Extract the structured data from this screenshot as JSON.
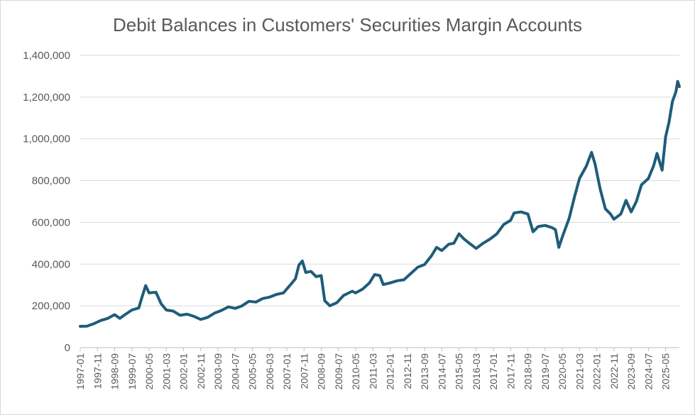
{
  "chart_data": {
    "type": "line",
    "title": "Debit Balances in Customers' Securities Margin Accounts",
    "xlabel": "",
    "ylabel": "",
    "ylim": [
      0,
      1400000
    ],
    "yticks": [
      "0",
      "200,000",
      "400,000",
      "600,000",
      "800,000",
      "1,000,000",
      "1,200,000",
      "1,400,000"
    ],
    "ytick_values": [
      0,
      200000,
      400000,
      600000,
      800000,
      1000000,
      1200000,
      1400000
    ],
    "xtick_labels": [
      "1997-01",
      "1997-11",
      "1998-09",
      "1999-07",
      "2000-05",
      "2001-03",
      "2002-01",
      "2002-11",
      "2003-09",
      "2004-07",
      "2005-05",
      "2006-03",
      "2007-01",
      "2007-11",
      "2008-09",
      "2009-07",
      "2010-05",
      "2011-03",
      "2012-01",
      "2012-11",
      "2013-09",
      "2014-07",
      "2015-05",
      "2016-03",
      "2017-01",
      "2017-11",
      "2018-09",
      "2019-07",
      "2020-05",
      "2021-03",
      "2022-01",
      "2022-11",
      "2023-09",
      "2024-07",
      "2025-05"
    ],
    "grid": "horizontal",
    "line_color": "#1f5c7a",
    "series": [
      {
        "name": "Debit Balances",
        "points": [
          [
            "1997-01",
            102000
          ],
          [
            "1997-05",
            103000
          ],
          [
            "1997-09",
            115000
          ],
          [
            "1998-01",
            130000
          ],
          [
            "1998-05",
            140000
          ],
          [
            "1998-09",
            158000
          ],
          [
            "1998-12",
            140000
          ],
          [
            "1999-03",
            158000
          ],
          [
            "1999-07",
            180000
          ],
          [
            "1999-11",
            190000
          ],
          [
            "2000-01",
            245000
          ],
          [
            "2000-03",
            297000
          ],
          [
            "2000-05",
            262000
          ],
          [
            "2000-09",
            265000
          ],
          [
            "2000-12",
            210000
          ],
          [
            "2001-03",
            180000
          ],
          [
            "2001-07",
            175000
          ],
          [
            "2001-11",
            155000
          ],
          [
            "2002-03",
            160000
          ],
          [
            "2002-07",
            150000
          ],
          [
            "2002-11",
            135000
          ],
          [
            "2003-03",
            145000
          ],
          [
            "2003-07",
            165000
          ],
          [
            "2003-11",
            178000
          ],
          [
            "2004-03",
            195000
          ],
          [
            "2004-07",
            188000
          ],
          [
            "2004-11",
            200000
          ],
          [
            "2005-03",
            222000
          ],
          [
            "2005-07",
            218000
          ],
          [
            "2005-11",
            235000
          ],
          [
            "2006-03",
            242000
          ],
          [
            "2006-07",
            255000
          ],
          [
            "2006-11",
            262000
          ],
          [
            "2007-03",
            300000
          ],
          [
            "2007-06",
            330000
          ],
          [
            "2007-08",
            395000
          ],
          [
            "2007-10",
            415000
          ],
          [
            "2007-12",
            360000
          ],
          [
            "2008-03",
            365000
          ],
          [
            "2008-06",
            340000
          ],
          [
            "2008-09",
            345000
          ],
          [
            "2008-11",
            225000
          ],
          [
            "2009-02",
            200000
          ],
          [
            "2009-06",
            215000
          ],
          [
            "2009-10",
            250000
          ],
          [
            "2010-03",
            270000
          ],
          [
            "2010-05",
            262000
          ],
          [
            "2010-09",
            280000
          ],
          [
            "2011-01",
            310000
          ],
          [
            "2011-04",
            350000
          ],
          [
            "2011-07",
            345000
          ],
          [
            "2011-09",
            302000
          ],
          [
            "2012-01",
            310000
          ],
          [
            "2012-05",
            320000
          ],
          [
            "2012-09",
            325000
          ],
          [
            "2013-01",
            355000
          ],
          [
            "2013-05",
            385000
          ],
          [
            "2013-09",
            398000
          ],
          [
            "2014-01",
            440000
          ],
          [
            "2014-04",
            480000
          ],
          [
            "2014-07",
            465000
          ],
          [
            "2014-11",
            495000
          ],
          [
            "2015-02",
            500000
          ],
          [
            "2015-05",
            545000
          ],
          [
            "2015-08",
            520000
          ],
          [
            "2015-11",
            500000
          ],
          [
            "2016-03",
            475000
          ],
          [
            "2016-07",
            500000
          ],
          [
            "2016-11",
            520000
          ],
          [
            "2017-03",
            545000
          ],
          [
            "2017-07",
            590000
          ],
          [
            "2017-11",
            610000
          ],
          [
            "2018-01",
            645000
          ],
          [
            "2018-05",
            650000
          ],
          [
            "2018-09",
            640000
          ],
          [
            "2018-12",
            555000
          ],
          [
            "2019-03",
            580000
          ],
          [
            "2019-07",
            585000
          ],
          [
            "2019-11",
            575000
          ],
          [
            "2020-01",
            565000
          ],
          [
            "2020-03",
            480000
          ],
          [
            "2020-05",
            530000
          ],
          [
            "2020-09",
            620000
          ],
          [
            "2020-12",
            720000
          ],
          [
            "2021-03",
            810000
          ],
          [
            "2021-07",
            870000
          ],
          [
            "2021-10",
            935000
          ],
          [
            "2021-12",
            880000
          ],
          [
            "2022-03",
            760000
          ],
          [
            "2022-06",
            665000
          ],
          [
            "2022-09",
            640000
          ],
          [
            "2022-11",
            615000
          ],
          [
            "2023-03",
            640000
          ],
          [
            "2023-06",
            705000
          ],
          [
            "2023-09",
            650000
          ],
          [
            "2023-12",
            700000
          ],
          [
            "2024-03",
            780000
          ],
          [
            "2024-07",
            810000
          ],
          [
            "2024-10",
            870000
          ],
          [
            "2024-12",
            930000
          ],
          [
            "2025-03",
            850000
          ],
          [
            "2025-05",
            1010000
          ],
          [
            "2025-07",
            1080000
          ],
          [
            "2025-09",
            1180000
          ],
          [
            "2025-11",
            1225000
          ],
          [
            "2025-12",
            1275000
          ],
          [
            "2026-01",
            1250000
          ]
        ]
      }
    ]
  }
}
